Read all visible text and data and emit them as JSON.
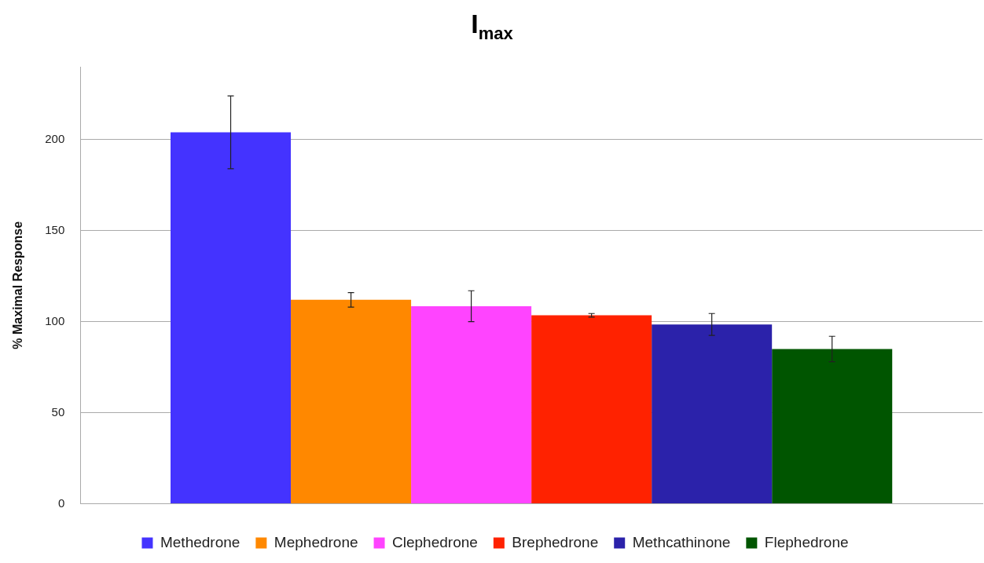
{
  "chart_data": {
    "type": "bar",
    "title": "I$_{max}$",
    "ylabel": "% Maximal Response",
    "categories": [
      null
    ],
    "series": [
      {
        "name": "Methedrone",
        "color": "#4433ff",
        "values": [
          204
        ],
        "errors": [
          20
        ]
      },
      {
        "name": "Mephedrone",
        "color": "#ff8800",
        "values": [
          112
        ],
        "errors": [
          4
        ]
      },
      {
        "name": "Clephedrone",
        "color": "#ff44ff",
        "values": [
          108.5
        ],
        "errors": [
          8.5
        ]
      },
      {
        "name": "Brephedrone",
        "color": "#ff2200",
        "values": [
          103.5
        ],
        "errors": [
          1
        ]
      },
      {
        "name": "Methcathinone",
        "color": "#2b22aa",
        "values": [
          98.5
        ],
        "errors": [
          6
        ]
      },
      {
        "name": "Flephedrone",
        "color": "#005500",
        "values": [
          85
        ],
        "errors": [
          7
        ]
      }
    ],
    "ylim": [
      0,
      240
    ],
    "yticks": [
      0,
      50,
      100,
      150,
      200
    ],
    "grid": "y",
    "legend": "bottom"
  }
}
